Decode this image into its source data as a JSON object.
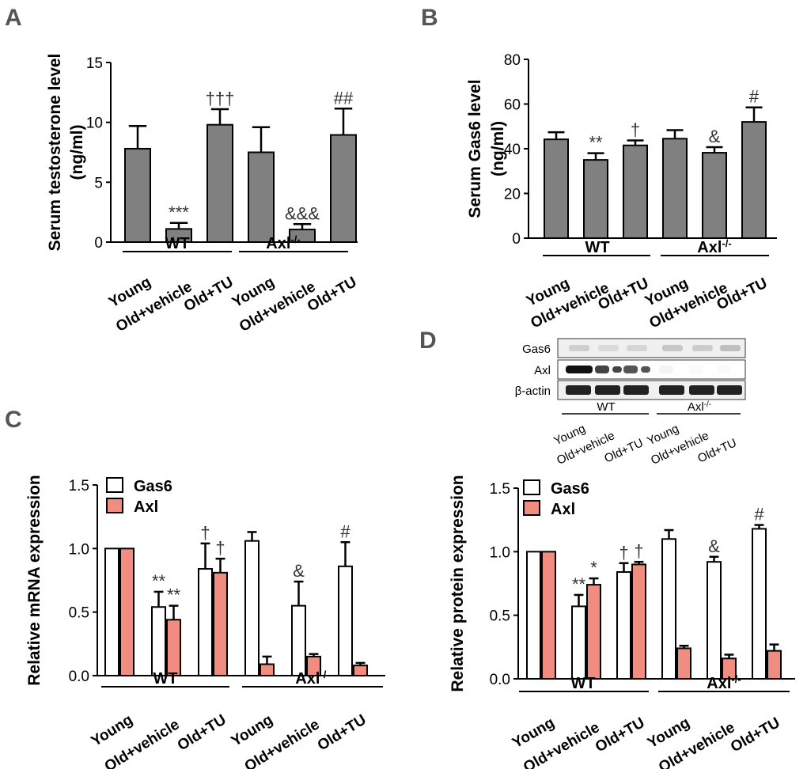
{
  "panels": {
    "A": "A",
    "B": "B",
    "C": "C",
    "D": "D"
  },
  "chart_data": [
    {
      "id": "A",
      "type": "bar",
      "ylabel": "Serum testosterone level",
      "ylabel2": "(ng/ml)",
      "ylim": [
        0,
        15
      ],
      "yticks": [
        0,
        5,
        10,
        15
      ],
      "categories": [
        "Young",
        "Old+vehicle",
        "Old+TU",
        "Young",
        "Old+vehicle",
        "Old+TU"
      ],
      "groups": [
        "WT",
        "Axl"
      ],
      "group_sup": "-/-",
      "series": [
        {
          "name": "Serum testosterone",
          "color": "#808080",
          "values": [
            7.8,
            1.1,
            9.8,
            7.5,
            1.05,
            8.95
          ],
          "errors": [
            1.9,
            0.5,
            1.3,
            2.1,
            0.45,
            2.2
          ],
          "annotations": [
            "",
            "***",
            "†††",
            "",
            "&&&",
            "##"
          ]
        }
      ]
    },
    {
      "id": "B",
      "type": "bar",
      "ylabel": "Serum Gas6 level",
      "ylabel2": "(ng/ml)",
      "ylim": [
        0,
        80
      ],
      "yticks": [
        0,
        20,
        40,
        60,
        80
      ],
      "categories": [
        "Young",
        "Old+vehicle",
        "Old+TU",
        "Young",
        "Old+vehicle",
        "Old+TU"
      ],
      "groups": [
        "WT",
        "Axl"
      ],
      "group_sup": "-/-",
      "series": [
        {
          "name": "Serum Gas6",
          "color": "#808080",
          "values": [
            44.2,
            35.0,
            41.5,
            44.5,
            38.2,
            52.0
          ],
          "errors": [
            3.2,
            3.0,
            2.2,
            3.8,
            2.5,
            6.5
          ],
          "annotations": [
            "",
            "**",
            "†",
            "",
            "&",
            "#"
          ]
        }
      ]
    },
    {
      "id": "C",
      "type": "bar",
      "ylabel": "Relative mRNA expression",
      "ylim": [
        0,
        1.5
      ],
      "yticks": [
        "0.0",
        "0.5",
        "1.0",
        "1.5"
      ],
      "categories": [
        "Young",
        "Old+vehicle",
        "Old+TU",
        "Young",
        "Old+vehicle",
        "Old+TU"
      ],
      "groups": [
        "WT",
        "Axl"
      ],
      "group_sup": "-/-",
      "legend": [
        "Gas6",
        "Axl"
      ],
      "series": [
        {
          "name": "Gas6",
          "color": "#ffffff",
          "values": [
            1.0,
            0.54,
            0.84,
            1.06,
            0.55,
            0.86
          ],
          "errors": [
            0,
            0.12,
            0.2,
            0.07,
            0.19,
            0.19
          ],
          "annotations": [
            "",
            "**",
            "†",
            "",
            "&",
            "#"
          ]
        },
        {
          "name": "Axl",
          "color": "#f08c80",
          "values": [
            1.0,
            0.44,
            0.81,
            0.09,
            0.15,
            0.08
          ],
          "errors": [
            0,
            0.11,
            0.11,
            0.06,
            0.02,
            0.02
          ],
          "annotations": [
            "",
            "**",
            "†",
            "",
            "",
            ""
          ]
        }
      ]
    },
    {
      "id": "D",
      "type": "bar",
      "ylabel": "Relative protein expression",
      "ylim": [
        0,
        1.5
      ],
      "yticks": [
        "0.0",
        "0.5",
        "1.0",
        "1.5"
      ],
      "categories": [
        "Young",
        "Old+vehicle",
        "Old+TU",
        "Young",
        "Old+vehicle",
        "Old+TU"
      ],
      "groups": [
        "WT",
        "Axl"
      ],
      "group_sup": "-/-",
      "legend": [
        "Gas6",
        "Axl"
      ],
      "series": [
        {
          "name": "Gas6",
          "color": "#ffffff",
          "values": [
            1.0,
            0.57,
            0.84,
            1.1,
            0.92,
            1.18
          ],
          "errors": [
            0,
            0.09,
            0.07,
            0.07,
            0.04,
            0.03
          ],
          "annotations": [
            "",
            "**",
            "†",
            "",
            "&",
            "#"
          ]
        },
        {
          "name": "Axl",
          "color": "#f08c80",
          "values": [
            1.0,
            0.74,
            0.9,
            0.24,
            0.16,
            0.22
          ],
          "errors": [
            0,
            0.05,
            0.02,
            0.02,
            0.03,
            0.05
          ],
          "annotations": [
            "",
            "*",
            "†",
            "",
            "",
            ""
          ]
        }
      ]
    }
  ],
  "blot": {
    "rows": [
      "Gas6",
      "Axl",
      "β-actin"
    ],
    "categories": [
      "Young",
      "Old+vehicle",
      "Old+TU",
      "Young",
      "Old+vehicle",
      "Old+TU"
    ],
    "groups": [
      "WT",
      "Axl"
    ],
    "group_sup": "-/-"
  }
}
